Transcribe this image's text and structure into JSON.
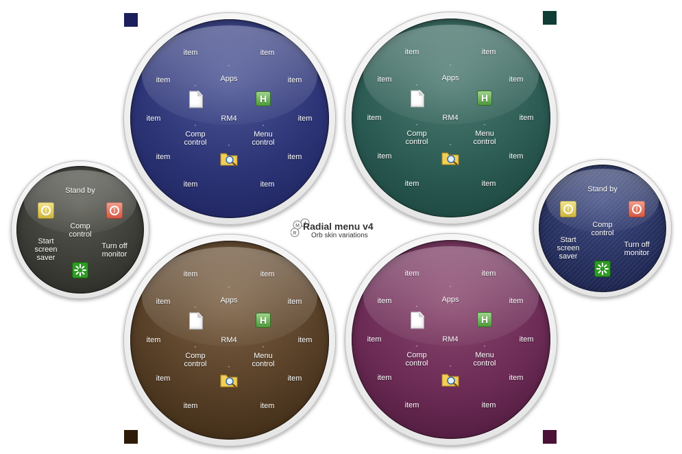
{
  "title": "Radial menu v4",
  "subtitle": "Orb skin variations",
  "logo_icon": "rm4-logo-icon",
  "swatches": [
    {
      "name": "navy-swatch",
      "color": "#1b1f5c"
    },
    {
      "name": "teal-swatch",
      "color": "#0f3d36"
    },
    {
      "name": "brown-swatch",
      "color": "#2d1b08"
    },
    {
      "name": "plum-swatch",
      "color": "#4a1236"
    }
  ],
  "large_menu": {
    "center": "RM4",
    "apps": "Apps",
    "comp_control": "Comp\ncontrol",
    "menu_control": "Menu\ncontrol",
    "item": "item",
    "dash": "-",
    "icons": [
      "document-icon",
      "hotkey-h-icon",
      "folder-search-icon"
    ]
  },
  "orbs": [
    {
      "name": "blue-orb",
      "skin": "blue"
    },
    {
      "name": "green-orb",
      "skin": "green"
    },
    {
      "name": "brown-orb",
      "skin": "brown"
    },
    {
      "name": "purple-orb",
      "skin": "purple"
    }
  ],
  "power_menu": {
    "stand_by": "Stand by",
    "comp_control": "Comp\ncontrol",
    "start_screen_saver": "Start\nscreen\nsaver",
    "turn_off_monitor": "Turn off\nmonitor",
    "icons": [
      "standby-power-icon",
      "shutdown-power-icon",
      "screensaver-icon"
    ]
  },
  "small_orbs": [
    {
      "name": "dark-power-orb",
      "skin": "dark"
    },
    {
      "name": "navy-power-orb",
      "skin": "navy"
    }
  ]
}
